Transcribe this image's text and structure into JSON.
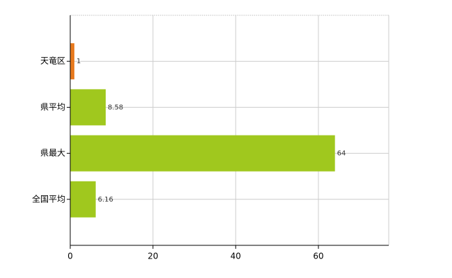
{
  "chart_data": {
    "type": "bar",
    "orientation": "horizontal",
    "categories": [
      "天竜区",
      "県平均",
      "県最大",
      "全国平均"
    ],
    "values": [
      1,
      8.58,
      64,
      6.16
    ],
    "colors": [
      "#e87a1e",
      "#a0c81e",
      "#a0c81e",
      "#a0c81e"
    ],
    "xlim": [
      0,
      77
    ],
    "xticks": [
      0,
      20,
      40,
      60
    ],
    "grid": true
  }
}
